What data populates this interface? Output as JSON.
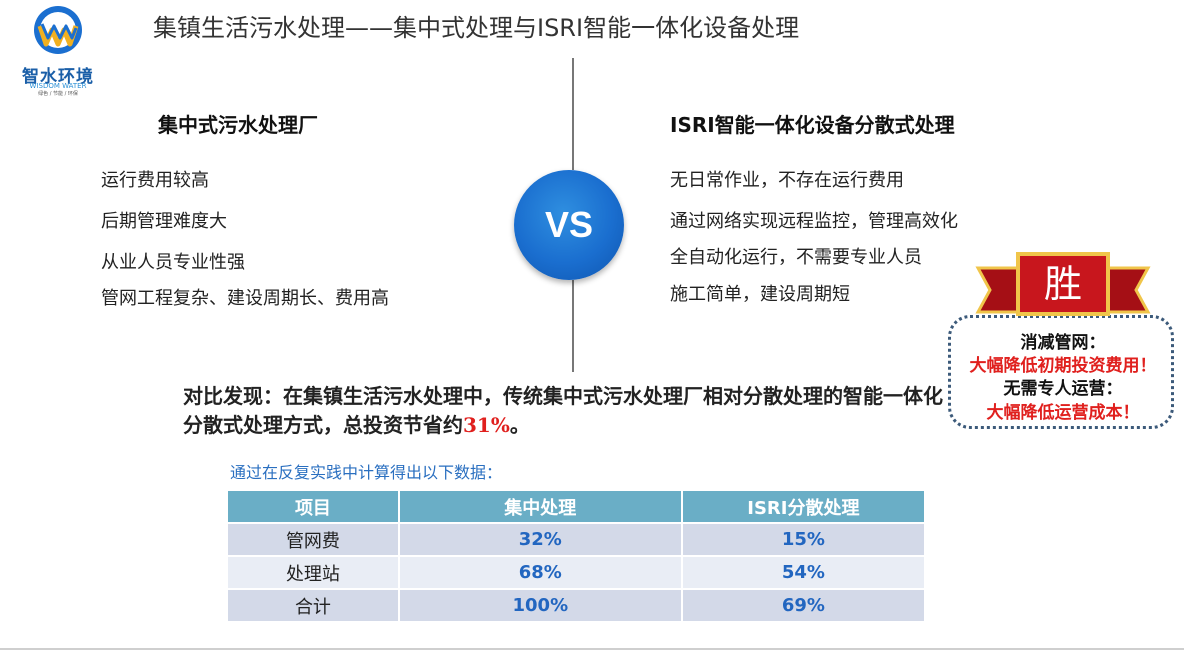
{
  "header": {
    "title": "集镇生活污水处理——集中式处理与ISRI智能一体化设备处理"
  },
  "logo": {
    "name": "智水环境",
    "english": "WISDOM WATER",
    "tagline": "绿色 / 节能 / 环保"
  },
  "left": {
    "heading": "集中式污水处理厂",
    "items": [
      "运行费用较高",
      "后期管理难度大",
      "从业人员专业性强",
      "管网工程复杂、建设周期长、费用高"
    ]
  },
  "vs": {
    "label": "VS"
  },
  "right": {
    "heading": "ISRI智能一体化设备分散式处理",
    "items": [
      "无日常作业，不存在运行费用",
      "通过网络实现远程监控，管理高效化",
      "全自动化运行，不需要专业人员",
      "施工简单，建设周期短"
    ]
  },
  "badge": {
    "ribbon": "胜",
    "lines": [
      "消减管网：",
      "大幅降低初期投资费用！",
      "无需专人运营：",
      "大幅降低运营成本！"
    ],
    "colors": {
      "ribbon": "#c8161d",
      "ribbon_border": "#f0c54a",
      "text_dark": "#111111",
      "text_red": "#e0201e"
    }
  },
  "summary": {
    "text": "对比发现：在集镇生活污水处理中，传统集中式污水处理厂相对分散处理的智能一体化分散式处理方式，总投资节省约",
    "highlight": "31%",
    "end": "。"
  },
  "table": {
    "caption": "通过在反复实践中计算得出以下数据：",
    "headers": [
      "项目",
      "集中处理",
      "ISRI分散处理"
    ],
    "rows": [
      [
        "管网费",
        "32%",
        "15%"
      ],
      [
        "处理站",
        "68%",
        "54%"
      ],
      [
        "合计",
        "100%",
        "69%"
      ]
    ],
    "colors": {
      "header": "#6aaec6",
      "value": "#2266c0"
    }
  }
}
